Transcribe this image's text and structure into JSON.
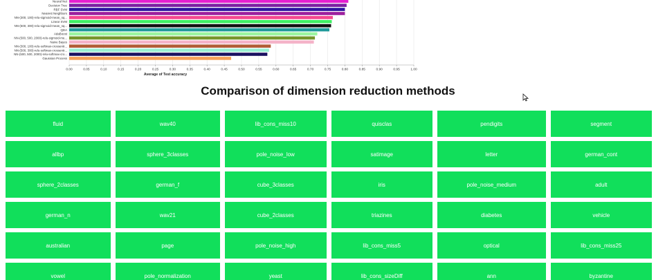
{
  "chart_data": {
    "type": "bar",
    "orientation": "horizontal",
    "categories": [
      "Neural Net",
      "Decision Tree",
      "RBF SVM",
      "Nearest Neighbors",
      "NN-(300, 100)-relu-sigmoid-mean_sq...",
      "Linear SVM",
      "NN-(500, 300)-relu-sigmoid-mean_sq...",
      "QDA",
      "AdaBoost",
      "NN-(500, 500, 2000)-relu-sigmoid-me...",
      "Naive Bayes",
      "NN-(300, 100)-relu-softmax-crossentr...",
      "NN-(500, 300)-relu-softmax-crossentr...",
      "NN-(500, 500, 2000)-relu-softmax-cro...",
      "Gaussian Process"
    ],
    "values": [
      0.81,
      0.805,
      0.8,
      0.8,
      0.765,
      0.762,
      0.76,
      0.755,
      0.72,
      0.713,
      0.71,
      0.585,
      0.58,
      0.575,
      0.47
    ],
    "colors": [
      "#e61fd0",
      "#7b1fa2",
      "#2e14a0",
      "#9c1f9e",
      "#f5488f",
      "#3fef63",
      "#111111",
      "#1f9a9a",
      "#9cf59f",
      "#77962b",
      "#f4b3c8",
      "#b25d37",
      "#9bf0d2",
      "#1b1260",
      "#f7a25a"
    ],
    "xlabel": "Average of Test accuracy",
    "xlim": [
      0,
      1
    ],
    "xticks": [
      "0.00",
      "0.05",
      "0.10",
      "0.15",
      "0.20",
      "0.25",
      "0.30",
      "0.35",
      "0.40",
      "0.45",
      "0.50",
      "0.55",
      "0.60",
      "0.65",
      "0.70",
      "0.75",
      "0.80",
      "0.85",
      "0.90",
      "0.95",
      "1.00"
    ],
    "grid": true
  },
  "section": {
    "title": "Comparison of dimension reduction methods"
  },
  "tile_color": "#11df5b",
  "tiles": [
    [
      "fluid",
      "wav40",
      "lib_cons_miss10",
      "quisclas",
      "pendigits",
      "segment"
    ],
    [
      "allbp",
      "sphere_3classes",
      "pole_noise_low",
      "satimage",
      "letter",
      "german_cont"
    ],
    [
      "sphere_2classes",
      "german_f",
      "cube_3classes",
      "iris",
      "pole_noise_medium",
      "adult"
    ],
    [
      "german_n",
      "wav21",
      "cube_2classes",
      "triazines",
      "diabetes",
      "vehicle"
    ],
    [
      "australian",
      "page",
      "pole_noise_high",
      "lib_cons_miss5",
      "optical",
      "lib_cons_miss25"
    ],
    [
      "vowel",
      "pole_normalization",
      "yeast",
      "lib_cons_sizeDiff",
      "ann",
      "byzantine"
    ]
  ]
}
